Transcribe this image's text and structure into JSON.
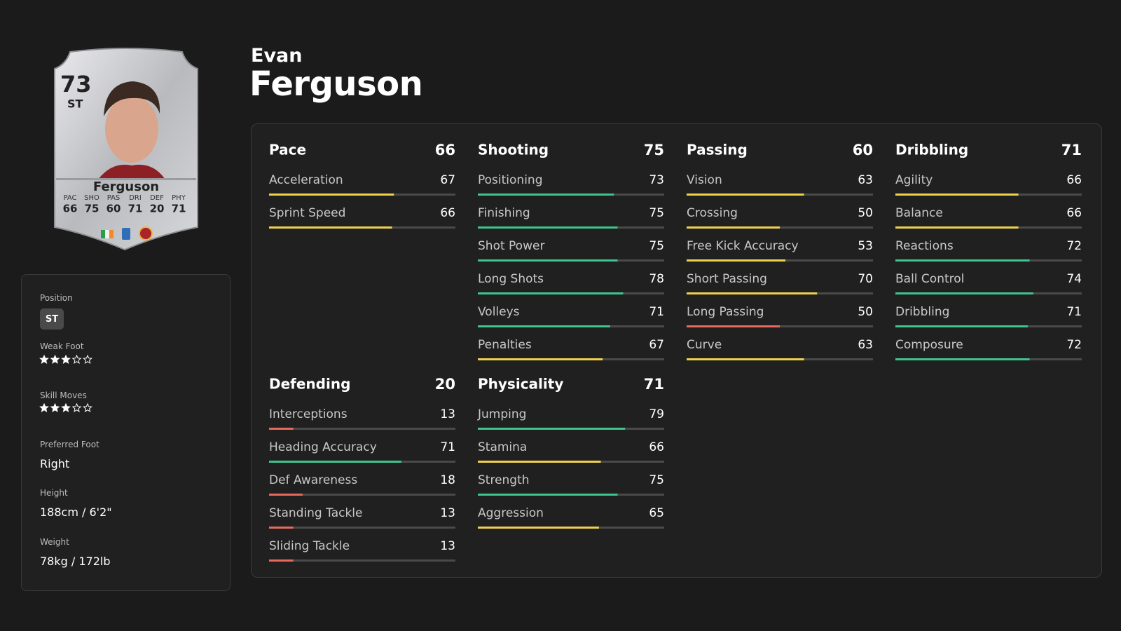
{
  "player": {
    "first_name": "Evan",
    "last_name": "Ferguson",
    "card": {
      "rating": 73,
      "position": "ST",
      "name": "Ferguson",
      "stats": [
        {
          "label": "PAC",
          "value": 66
        },
        {
          "label": "SHO",
          "value": 75
        },
        {
          "label": "PAS",
          "value": 60
        },
        {
          "label": "DRI",
          "value": 71
        },
        {
          "label": "DEF",
          "value": 20
        },
        {
          "label": "PHY",
          "value": 71
        }
      ]
    },
    "info": {
      "position": {
        "label": "Position",
        "value": "ST"
      },
      "weak_foot": {
        "label": "Weak Foot",
        "stars": 3,
        "max": 5
      },
      "skill_moves": {
        "label": "Skill Moves",
        "stars": 3,
        "max": 5
      },
      "preferred_foot": {
        "label": "Preferred Foot",
        "value": "Right"
      },
      "height": {
        "label": "Height",
        "value": "188cm / 6'2\""
      },
      "weight": {
        "label": "Weight",
        "value": "78kg / 172lb"
      }
    }
  },
  "bar_range": [
    0,
    100
  ],
  "bar_colors": {
    "high": "#3ec48e",
    "mid": "#f0d14e",
    "low": "#e66a5e"
  },
  "groups": [
    {
      "name": "Pace",
      "value": 66,
      "stats": [
        {
          "name": "Acceleration",
          "value": 67,
          "color": "mid"
        },
        {
          "name": "Sprint Speed",
          "value": 66,
          "color": "mid"
        }
      ]
    },
    {
      "name": "Shooting",
      "value": 75,
      "stats": [
        {
          "name": "Positioning",
          "value": 73,
          "color": "high"
        },
        {
          "name": "Finishing",
          "value": 75,
          "color": "high"
        },
        {
          "name": "Shot Power",
          "value": 75,
          "color": "high"
        },
        {
          "name": "Long Shots",
          "value": 78,
          "color": "high"
        },
        {
          "name": "Volleys",
          "value": 71,
          "color": "high"
        },
        {
          "name": "Penalties",
          "value": 67,
          "color": "mid"
        }
      ]
    },
    {
      "name": "Passing",
      "value": 60,
      "stats": [
        {
          "name": "Vision",
          "value": 63,
          "color": "mid"
        },
        {
          "name": "Crossing",
          "value": 50,
          "color": "mid"
        },
        {
          "name": "Free Kick Accuracy",
          "value": 53,
          "color": "mid"
        },
        {
          "name": "Short Passing",
          "value": 70,
          "color": "mid"
        },
        {
          "name": "Long Passing",
          "value": 50,
          "color": "low"
        },
        {
          "name": "Curve",
          "value": 63,
          "color": "mid"
        }
      ]
    },
    {
      "name": "Dribbling",
      "value": 71,
      "stats": [
        {
          "name": "Agility",
          "value": 66,
          "color": "mid"
        },
        {
          "name": "Balance",
          "value": 66,
          "color": "mid"
        },
        {
          "name": "Reactions",
          "value": 72,
          "color": "high"
        },
        {
          "name": "Ball Control",
          "value": 74,
          "color": "high"
        },
        {
          "name": "Dribbling",
          "value": 71,
          "color": "high"
        },
        {
          "name": "Composure",
          "value": 72,
          "color": "high"
        }
      ]
    },
    {
      "name": "Defending",
      "value": 20,
      "stats": [
        {
          "name": "Interceptions",
          "value": 13,
          "color": "low"
        },
        {
          "name": "Heading Accuracy",
          "value": 71,
          "color": "high"
        },
        {
          "name": "Def Awareness",
          "value": 18,
          "color": "low"
        },
        {
          "name": "Standing Tackle",
          "value": 13,
          "color": "low"
        },
        {
          "name": "Sliding Tackle",
          "value": 13,
          "color": "low"
        }
      ]
    },
    {
      "name": "Physicality",
      "value": 71,
      "stats": [
        {
          "name": "Jumping",
          "value": 79,
          "color": "high"
        },
        {
          "name": "Stamina",
          "value": 66,
          "color": "mid"
        },
        {
          "name": "Strength",
          "value": 75,
          "color": "high"
        },
        {
          "name": "Aggression",
          "value": 65,
          "color": "mid"
        }
      ]
    }
  ]
}
